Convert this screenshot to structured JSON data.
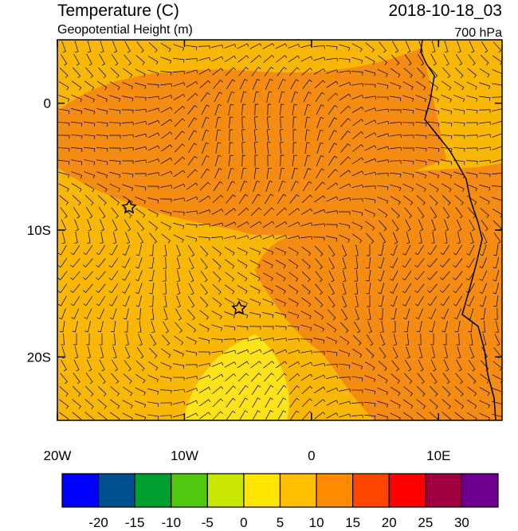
{
  "header": {
    "title": "Temperature (C)",
    "subtitle": "Geopotential Height (m)",
    "valid_time": "2018-10-18_03",
    "level": "700 hPa"
  },
  "map": {
    "xlim": [
      -20,
      15
    ],
    "ylim": [
      -25,
      5
    ],
    "xticks": [
      {
        "value": -20,
        "label": "20W"
      },
      {
        "value": -10,
        "label": "10W"
      },
      0,
      {
        "value": 10,
        "label": "10E"
      }
    ],
    "yticks": [
      0,
      {
        "value": -10,
        "label": "10S"
      },
      {
        "value": -20,
        "label": "20S"
      }
    ]
  },
  "colorbar": {
    "colors": [
      "#0000ff",
      "#00508f",
      "#00a030",
      "#50c810",
      "#c8e600",
      "#ffe600",
      "#ffbe00",
      "#ff8c00",
      "#ff4600",
      "#ff0000",
      "#a00040",
      "#6e0090"
    ],
    "ticks": [
      -20,
      -15,
      -10,
      -5,
      0,
      5,
      10,
      15,
      20,
      25,
      30
    ]
  }
}
